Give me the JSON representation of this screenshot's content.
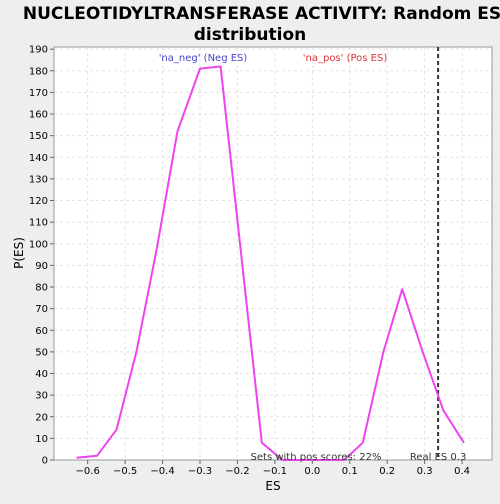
{
  "chart_data": {
    "type": "line",
    "title_line1": "NUCLEOTIDYLTRANSFERASE ACTIVITY: Random ES",
    "title_line2": "distribution",
    "xlabel": "ES",
    "ylabel": "P(ES)",
    "xlim": [
      -0.69,
      0.48
    ],
    "ylim": [
      0,
      191
    ],
    "xticks": [
      -0.6,
      -0.5,
      -0.4,
      -0.3,
      -0.2,
      -0.1,
      0.0,
      0.1,
      0.2,
      0.3,
      0.4
    ],
    "xtick_labels": [
      "−0.6",
      "−0.5",
      "−0.4",
      "−0.3",
      "−0.2",
      "−0.1",
      "0.0",
      "0.1",
      "0.2",
      "0.3",
      "0.4"
    ],
    "yticks": [
      0,
      10,
      20,
      30,
      40,
      50,
      60,
      70,
      80,
      90,
      100,
      110,
      120,
      130,
      140,
      150,
      160,
      170,
      180,
      190
    ],
    "grid": true,
    "series": [
      {
        "color": "#ee44ee",
        "x": [
          -0.63,
          -0.575,
          -0.523,
          -0.47,
          -0.415,
          -0.36,
          -0.3,
          -0.245,
          -0.19,
          -0.135,
          -0.08,
          -0.025,
          0.03,
          0.085,
          0.135,
          0.19,
          0.24,
          0.295,
          0.35,
          0.405
        ],
        "y": [
          1,
          2,
          14,
          50,
          98,
          152,
          181,
          182,
          95,
          8,
          0,
          0,
          0,
          0,
          8,
          50,
          79,
          50,
          23,
          8
        ]
      }
    ],
    "real_es": {
      "x": 0.336,
      "label": "Real ES 0.3",
      "color": "#333333"
    },
    "annotations": {
      "neg_label": "'na_neg' (Neg ES)",
      "neg_color": "#4444cc",
      "pos_label": "'na_pos' (Pos ES)",
      "pos_color": "#dd3333",
      "sets_label": "Sets with pos scores: 22%"
    }
  }
}
